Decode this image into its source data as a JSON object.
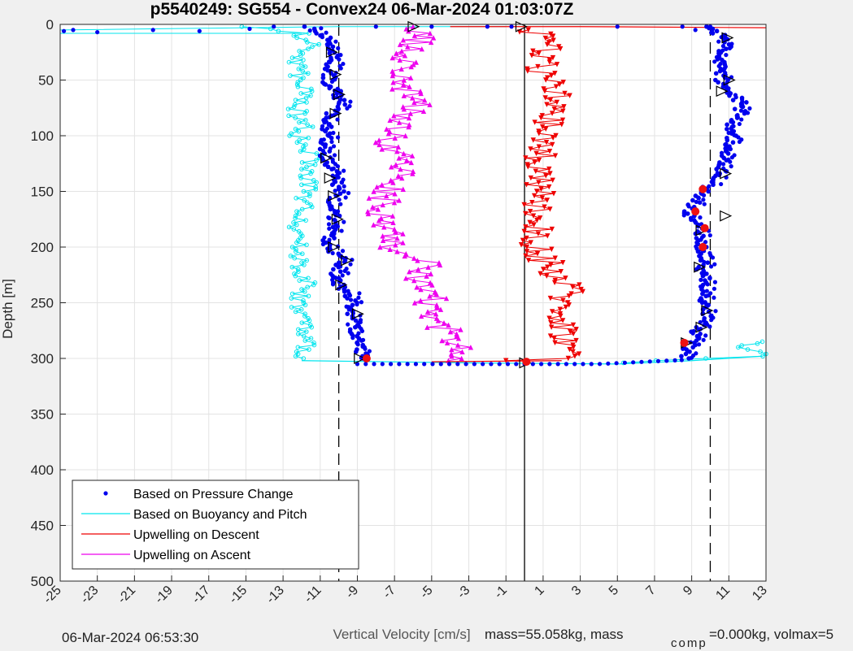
{
  "chart_data": {
    "type": "scatter",
    "title": "p5540249: SG554 - Convex24 06-Mar-2024 01:03:07Z",
    "xlabel": "Vertical Velocity [cm/s]",
    "ylabel": "Depth [m]",
    "xlim": [
      -25,
      13
    ],
    "ylim": [
      0,
      500
    ],
    "y_reversed": true,
    "grid": true,
    "xticks": [
      -25,
      -23,
      -21,
      -19,
      -17,
      -15,
      -13,
      -11,
      -9,
      -7,
      -5,
      -3,
      -1,
      1,
      3,
      5,
      7,
      9,
      11,
      13
    ],
    "yticks": [
      0,
      50,
      100,
      150,
      200,
      250,
      300,
      350,
      400,
      450,
      500
    ],
    "legend_position": "bottom-left",
    "reference_lines": [
      {
        "x": -10,
        "style": "dashed"
      },
      {
        "x": 10,
        "style": "dashed"
      },
      {
        "x": 0,
        "style": "solid"
      }
    ],
    "series": [
      {
        "name": "Based on Pressure Change",
        "color": "#0000ee",
        "marker": "dot",
        "descent": {
          "depth": [
            2,
            10,
            20,
            30,
            40,
            50,
            60,
            70,
            80,
            90,
            100,
            110,
            120,
            130,
            140,
            150,
            160,
            170,
            180,
            190,
            200,
            210,
            220,
            230,
            240,
            250,
            260,
            270,
            280,
            290,
            300
          ],
          "velocity": [
            -11.5,
            -10.8,
            -10.6,
            -10.2,
            -10.5,
            -10.6,
            -10.2,
            -9.8,
            -10.4,
            -10.6,
            -10.6,
            -10.8,
            -10.7,
            -10.2,
            -10.2,
            -10.0,
            -10.4,
            -10.3,
            -10.3,
            -10.6,
            -10.5,
            -9.8,
            -10.0,
            -10.2,
            -9.4,
            -9.3,
            -9.2,
            -9.2,
            -9.0,
            -8.9,
            -8.7
          ]
        },
        "ascent": {
          "depth": [
            300,
            290,
            280,
            270,
            260,
            250,
            240,
            230,
            220,
            210,
            200,
            190,
            180,
            170,
            160,
            150,
            140,
            130,
            120,
            110,
            100,
            90,
            80,
            70,
            60,
            50,
            40,
            30,
            20,
            10,
            2
          ],
          "velocity": [
            8.5,
            8.8,
            9.2,
            9.5,
            9.8,
            9.7,
            9.9,
            9.7,
            9.6,
            9.7,
            9.5,
            9.4,
            9.6,
            8.8,
            9.2,
            9.6,
            10.3,
            10.6,
            10.6,
            11.0,
            11.2,
            10.9,
            11.5,
            11.7,
            11.0,
            10.6,
            10.6,
            10.4,
            11.0,
            10.6,
            9.8
          ]
        }
      },
      {
        "name": "Based on Buoyancy and Pitch",
        "color": "#00e5ee",
        "marker": "open-circle",
        "descent": {
          "depth": [
            2,
            8,
            20,
            30,
            40,
            50,
            60,
            70,
            80,
            90,
            100,
            110,
            120,
            130,
            140,
            150,
            160,
            170,
            180,
            190,
            200,
            210,
            220,
            230,
            240,
            250,
            260,
            270,
            280,
            290,
            300
          ],
          "velocity": [
            -15.0,
            -12.0,
            -11.5,
            -12.3,
            -12.1,
            -12.2,
            -11.8,
            -12.0,
            -12.3,
            -11.8,
            -12.1,
            -12.0,
            -11.3,
            -11.8,
            -11.5,
            -11.7,
            -12.0,
            -11.8,
            -12.2,
            -11.9,
            -12.3,
            -12.0,
            -12.1,
            -11.7,
            -11.9,
            -12.2,
            -12.0,
            -11.8,
            -12.0,
            -11.7,
            -11.9
          ]
        },
        "ascent": {
          "depth": [
            304,
            300,
            298,
            290,
            285
          ],
          "velocity": [
            5.0,
            9.5,
            12.8,
            11.5,
            12.8
          ]
        }
      },
      {
        "name": "Upwelling on Descent",
        "color": "#ee0000",
        "marker": "triangle-down",
        "descent": {
          "depth": [
            5,
            20,
            40,
            60,
            80,
            100,
            120,
            140,
            160,
            180,
            200,
            220,
            240,
            260,
            280,
            300,
            302
          ],
          "velocity": [
            0.5,
            1.4,
            1.0,
            1.6,
            1.3,
            1.0,
            0.9,
            0.8,
            0.6,
            0.7,
            0.5,
            1.5,
            2.3,
            2.0,
            2.2,
            2.5,
            -1.0
          ]
        }
      },
      {
        "name": "Upwelling on Ascent",
        "color": "#ee00ee",
        "marker": "triangle-up",
        "ascent": {
          "depth": [
            302,
            290,
            280,
            270,
            260,
            250,
            240,
            230,
            220,
            210,
            200,
            190,
            180,
            170,
            160,
            150,
            140,
            130,
            120,
            110,
            100,
            90,
            80,
            70,
            60,
            50,
            40,
            30,
            20,
            10,
            2
          ],
          "velocity": [
            -4.2,
            -3.4,
            -3.8,
            -4.5,
            -5.0,
            -5.2,
            -4.8,
            -5.8,
            -5.3,
            -5.5,
            -7.3,
            -7.0,
            -7.4,
            -7.8,
            -7.6,
            -7.4,
            -6.8,
            -6.5,
            -6.5,
            -7.1,
            -7.2,
            -7.0,
            -6.0,
            -6.0,
            -6.4,
            -6.7,
            -6.2,
            -7.0,
            -6.0,
            -5.4,
            -6.0
          ]
        }
      }
    ],
    "markers": [
      {
        "kind": "black-triangle",
        "points": [
          [
            -6.0,
            2
          ],
          [
            -0.2,
            2
          ],
          [
            10.9,
            12
          ],
          [
            11.0,
            50
          ],
          [
            -10.4,
            25
          ],
          [
            -10.2,
            45
          ],
          [
            -10.0,
            63
          ],
          [
            -10.2,
            80
          ],
          [
            -10.7,
            120
          ],
          [
            -10.5,
            138
          ],
          [
            -10.3,
            154
          ],
          [
            -10.1,
            175
          ],
          [
            -10.3,
            200
          ],
          [
            -9.6,
            212
          ],
          [
            -9.9,
            234
          ],
          [
            -9.0,
            260
          ],
          [
            -8.9,
            300
          ],
          [
            0.0,
            304
          ],
          [
            9.5,
            185
          ],
          [
            9.4,
            218
          ],
          [
            9.8,
            257
          ],
          [
            9.5,
            272
          ],
          [
            8.7,
            286
          ],
          [
            10.6,
            60
          ],
          [
            10.8,
            134
          ],
          [
            10.8,
            172
          ]
        ]
      },
      {
        "kind": "red-dot",
        "points": [
          [
            -8.5,
            300
          ],
          [
            0.1,
            303
          ],
          [
            9.6,
            148
          ],
          [
            9.2,
            168
          ],
          [
            9.7,
            183
          ],
          [
            9.6,
            200
          ],
          [
            8.6,
            286
          ]
        ]
      }
    ]
  },
  "footer": {
    "timestamp": "06-Mar-2024 06:53:30",
    "mass_text": "mass=55.058kg, mass",
    "comp_subscript": "comp",
    "comp_text": "=0.000kg, volmax=5"
  }
}
